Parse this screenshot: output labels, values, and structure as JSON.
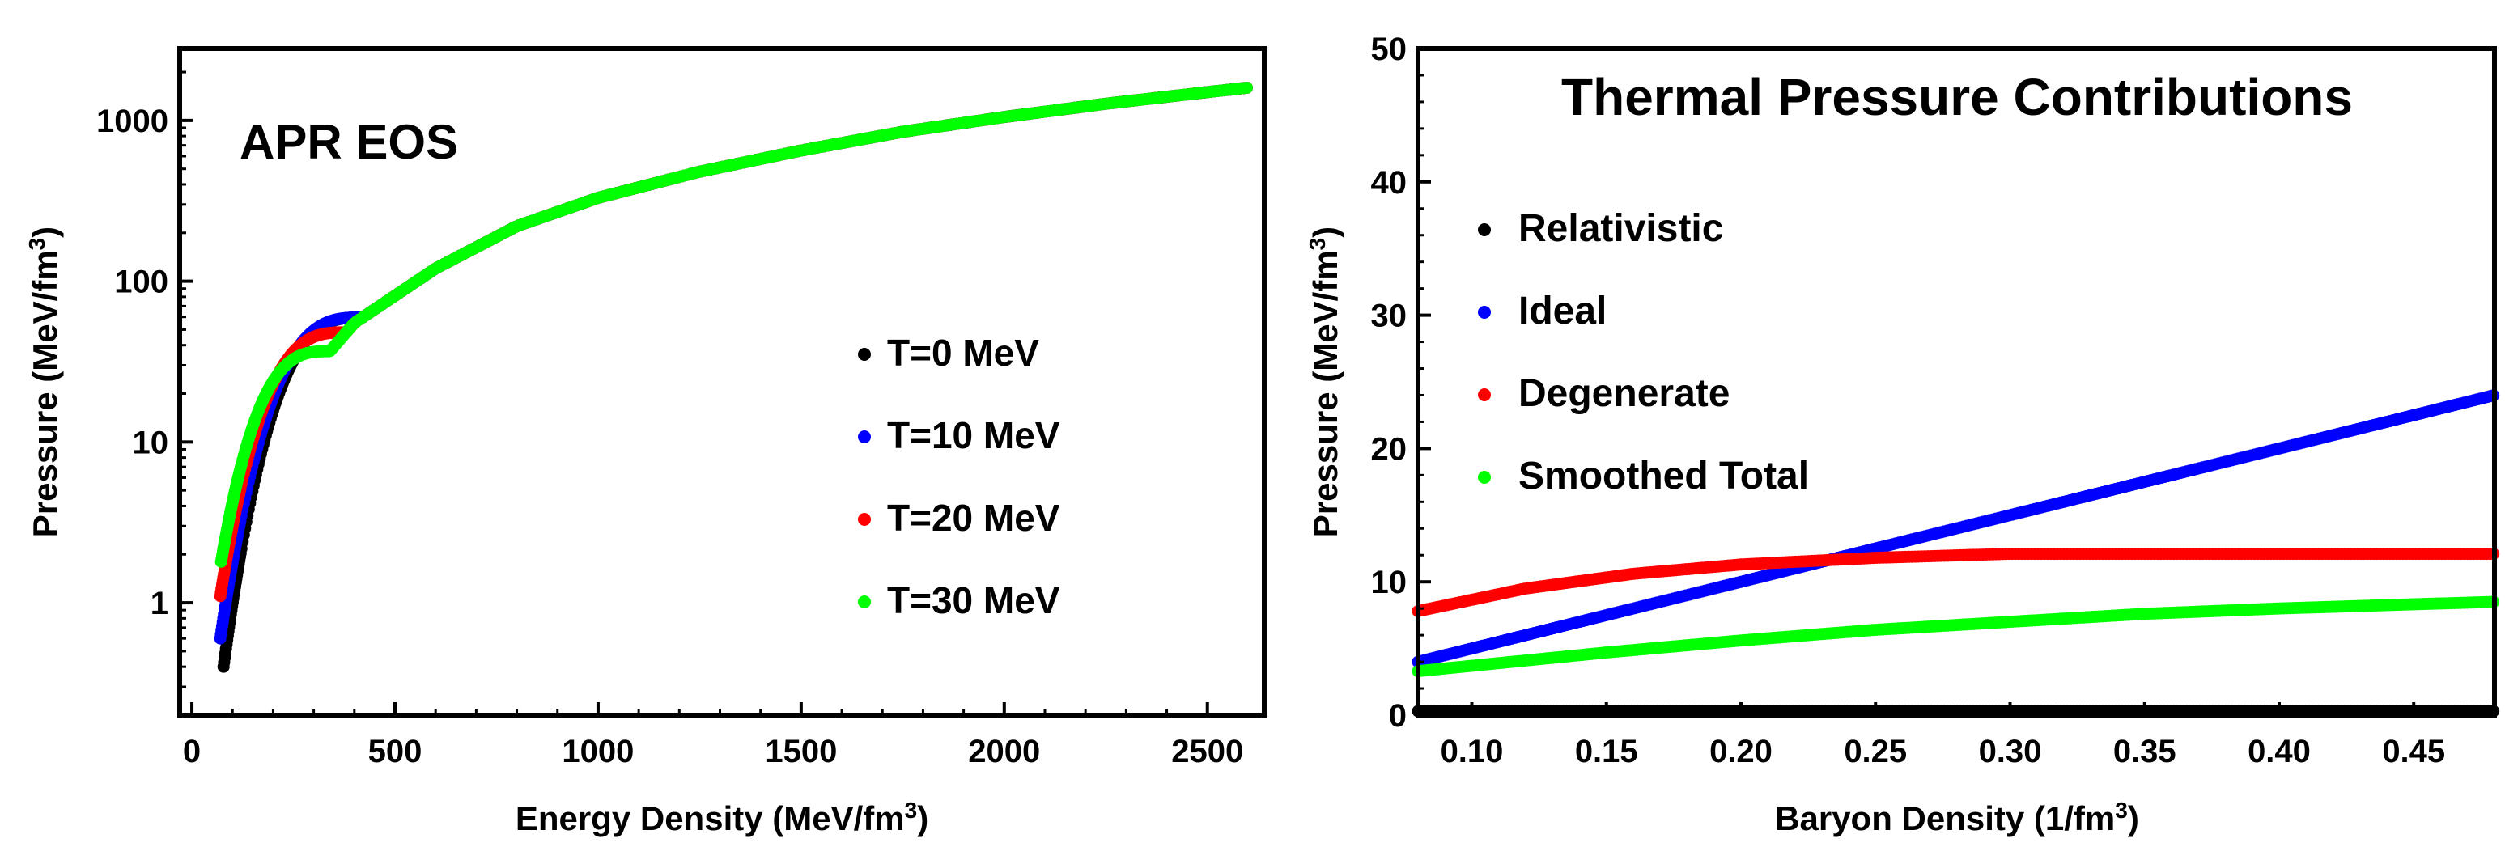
{
  "chart_data": [
    {
      "type": "scatter",
      "annotation": "APR EOS",
      "xlabel": "Energy Density (MeV/fm",
      "xlabel_sup": "3",
      "xlabel_close": ")",
      "ylabel": "Pressure (MeV/fm",
      "ylabel_sup": "3",
      "ylabel_close": ")",
      "xlim": [
        -30,
        2640
      ],
      "ylim": [
        0.2,
        2800
      ],
      "yscale": "log",
      "grid": false,
      "legend_position": "bottom-right",
      "x_ticks": [
        0,
        500,
        1000,
        1500,
        2000,
        2500
      ],
      "x_tick_labels": [
        "0",
        "500",
        "1000",
        "1500",
        "2000",
        "2500"
      ],
      "y_ticks": [
        1,
        10,
        100,
        1000
      ],
      "y_tick_labels": [
        "1",
        "10",
        "100",
        "1000"
      ],
      "series": [
        {
          "name": "T=0 MeV",
          "color": "#000000",
          "curve": "cold",
          "x_start": 78,
          "p_start": 0.4
        },
        {
          "name": "T=10 MeV",
          "color": "#0000ff",
          "curve": "cold",
          "x_start": 70,
          "p_start": 0.6
        },
        {
          "name": "T=20 MeV",
          "color": "#ff0000",
          "curve": "warm",
          "x_start": 70,
          "p_start": 1.1
        },
        {
          "name": "T=30 MeV",
          "color": "#00ff00",
          "curve": "hot",
          "x_start": 72,
          "p_start": 1.8
        }
      ],
      "reference_points": [
        {
          "x": 100,
          "p": 1.6
        },
        {
          "x": 150,
          "p": 6
        },
        {
          "x": 250,
          "p": 20
        },
        {
          "x": 400,
          "p": 55
        },
        {
          "x": 600,
          "p": 120
        },
        {
          "x": 800,
          "p": 220
        },
        {
          "x": 1000,
          "p": 330
        },
        {
          "x": 1250,
          "p": 480
        },
        {
          "x": 1500,
          "p": 650
        },
        {
          "x": 1750,
          "p": 850
        },
        {
          "x": 2000,
          "p": 1050
        },
        {
          "x": 2250,
          "p": 1270
        },
        {
          "x": 2500,
          "p": 1500
        },
        {
          "x": 2600,
          "p": 1600
        }
      ]
    },
    {
      "type": "scatter",
      "title": "Thermal Pressure Contributions",
      "xlabel": "Baryon Density (1/fm",
      "xlabel_sup": "3",
      "xlabel_close": ")",
      "ylabel": "Pressure (MeV/fm",
      "ylabel_sup": "3",
      "ylabel_close": ")",
      "xlim": [
        0.08,
        0.48
      ],
      "ylim": [
        0,
        50
      ],
      "grid": false,
      "legend_position": "top-left",
      "x_ticks": [
        0.1,
        0.15,
        0.2,
        0.25,
        0.3,
        0.35,
        0.4,
        0.45
      ],
      "x_tick_labels": [
        "0.10",
        "0.15",
        "0.20",
        "0.25",
        "0.30",
        "0.35",
        "0.40",
        "0.45"
      ],
      "y_ticks": [
        0,
        10,
        20,
        30,
        40,
        50
      ],
      "y_tick_labels": [
        "0",
        "10",
        "20",
        "30",
        "40",
        "50"
      ],
      "series": [
        {
          "name": "Relativistic",
          "color": "#000000",
          "x": [
            0.08,
            0.48
          ],
          "y": [
            0.3,
            0.3
          ]
        },
        {
          "name": "Ideal",
          "color": "#0000ff",
          "x": [
            0.08,
            0.48
          ],
          "y": [
            4,
            24
          ]
        },
        {
          "name": "Degenerate",
          "color": "#ff0000",
          "x": [
            0.08,
            0.12,
            0.16,
            0.2,
            0.25,
            0.3,
            0.48
          ],
          "y": [
            7.8,
            9.5,
            10.6,
            11.3,
            11.8,
            12.1,
            12.1
          ]
        },
        {
          "name": "Smoothed Total",
          "color": "#00ff00",
          "x": [
            0.08,
            0.15,
            0.2,
            0.25,
            0.3,
            0.35,
            0.4,
            0.48
          ],
          "y": [
            3.3,
            4.7,
            5.6,
            6.4,
            7.0,
            7.6,
            8.0,
            8.5
          ]
        }
      ]
    }
  ]
}
